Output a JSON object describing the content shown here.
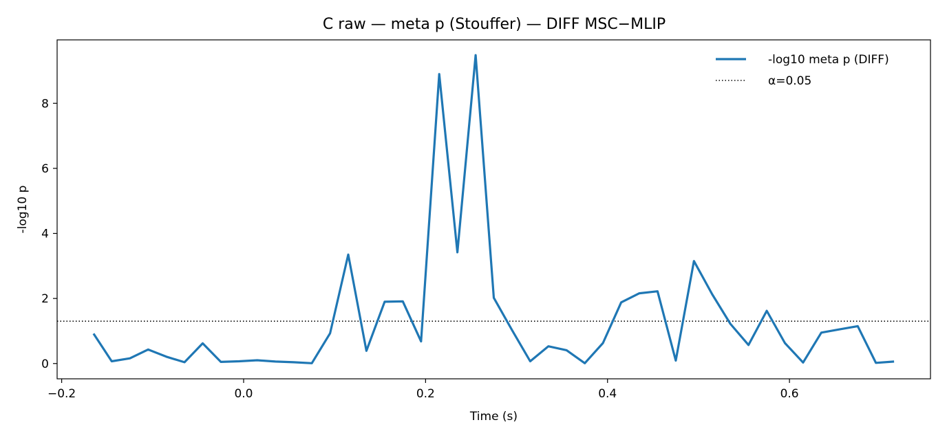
{
  "chart_data": {
    "type": "line",
    "title": "C raw — meta p (Stouffer) — DIFF MSC−MLIP",
    "xlabel": "Time (s)",
    "ylabel": "-log10 p",
    "xlim": [
      -0.205,
      0.755
    ],
    "ylim": [
      -0.47,
      9.95
    ],
    "xticks": [
      -0.2,
      0.0,
      0.2,
      0.4,
      0.6
    ],
    "xtick_labels": [
      "−0.2",
      "0.0",
      "0.2",
      "0.4",
      "0.6"
    ],
    "yticks": [
      0,
      2,
      4,
      6,
      8
    ],
    "ytick_labels": [
      "0",
      "2",
      "4",
      "6",
      "8"
    ],
    "grid": false,
    "legend_position": "top-right",
    "series": [
      {
        "name": "-log10 meta p (DIFF)",
        "color": "#1f77b4",
        "style": "solid",
        "x": [
          -0.165,
          -0.145,
          -0.125,
          -0.105,
          -0.085,
          -0.065,
          -0.045,
          -0.025,
          -0.005,
          0.015,
          0.035,
          0.055,
          0.075,
          0.095,
          0.115,
          0.135,
          0.155,
          0.175,
          0.195,
          0.215,
          0.235,
          0.255,
          0.275,
          0.295,
          0.315,
          0.335,
          0.355,
          0.375,
          0.395,
          0.415,
          0.435,
          0.455,
          0.475,
          0.495,
          0.515,
          0.535,
          0.555,
          0.575,
          0.595,
          0.615,
          0.635,
          0.655,
          0.675,
          0.695,
          0.715
        ],
        "y": [
          0.92,
          0.07,
          0.16,
          0.43,
          0.21,
          0.04,
          0.62,
          0.05,
          0.07,
          0.1,
          0.06,
          0.04,
          0.01,
          0.93,
          3.35,
          0.39,
          1.9,
          1.91,
          0.68,
          8.9,
          3.42,
          9.48,
          2.02,
          1.03,
          0.07,
          0.53,
          0.41,
          0.01,
          0.63,
          1.88,
          2.16,
          2.22,
          0.09,
          3.15,
          2.13,
          1.22,
          0.57,
          1.62,
          0.63,
          0.03,
          0.95,
          1.05,
          1.15,
          0.02,
          0.06
        ]
      },
      {
        "name": "α=0.05",
        "color": "#000000",
        "style": "dotted",
        "y_constant": 1.30103
      }
    ]
  }
}
